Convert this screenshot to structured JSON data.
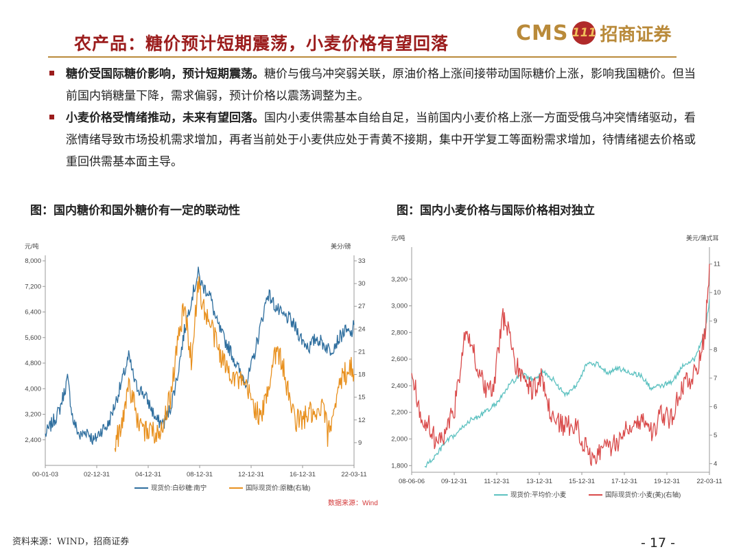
{
  "header": {
    "title": "农产品：糖价预计短期震荡，小麦价格有望回落",
    "logo_text": "CMS",
    "logo_mark": "111",
    "logo_cn": "招商证券"
  },
  "bullets": [
    {
      "lead": "糖价受国际糖价影响，预计短期震荡。",
      "body": "糖价与俄乌冲突弱关联，原油价格上涨间接带动国际糖价上涨，影响我国糖价。但当前国内销糖量下降，需求偏弱，预计价格以震荡调整为主。"
    },
    {
      "lead": "小麦价格受情绪推动，未来有望回落。",
      "body": "国内小麦供需基本自给自足，当前国内小麦价格上涨一方面受俄乌冲突情绪驱动，看涨情绪导致市场投机需求增加，再者当前处于小麦供应处于青黄不接期，集中开学复工等面粉需求增加，待情绪褪去价格或重回供需基本面主导。"
    }
  ],
  "figures": {
    "left_caption": "图：国内糖价和国外糖价有一定的联动性",
    "right_caption": "图：国内小麦价格与国际价格相对独立",
    "left_source": "数据来源：Wind"
  },
  "chart_data": [
    {
      "type": "line",
      "ylabel": "元/吨",
      "y2label": "美分/磅",
      "ylim": [
        1600,
        8000
      ],
      "y2lim": [
        6,
        33
      ],
      "yticks": [
        "8,000",
        "7,200",
        "6,400",
        "5,600",
        "4,800",
        "4,000",
        "3,200",
        "2,400"
      ],
      "y2ticks": [
        "33",
        "30",
        "27",
        "24",
        "21",
        "18",
        "15",
        "12",
        "9"
      ],
      "xticks": [
        "00-01-03",
        "02-12-31",
        "04-12-31",
        "08-12-31",
        "12-12-31",
        "16-12-31",
        "22-03-11"
      ],
      "x_range": [
        2000.0,
        2022.2
      ],
      "series": [
        {
          "name": "现货价:白砂糖:南宁",
          "color": "#2e6e9e",
          "axis": "left",
          "x": [
            2000.0,
            2001.0,
            2001.6,
            2002.0,
            2002.5,
            2003.0,
            2003.5,
            2004.0,
            2004.5,
            2005.0,
            2005.5,
            2006.0,
            2006.5,
            2007.0,
            2007.5,
            2008.0,
            2008.5,
            2009.0,
            2009.5,
            2010.0,
            2010.5,
            2011.0,
            2011.3,
            2011.8,
            2012.3,
            2012.8,
            2013.3,
            2014.0,
            2014.5,
            2015.0,
            2015.5,
            2016.0,
            2016.5,
            2017.0,
            2017.5,
            2018.0,
            2018.5,
            2019.0,
            2019.5,
            2020.0,
            2020.5,
            2021.0,
            2021.5,
            2022.0,
            2022.2
          ],
          "y": [
            2550,
            3300,
            4300,
            3000,
            2500,
            2700,
            2350,
            2700,
            2850,
            3500,
            4200,
            5000,
            4100,
            3900,
            3500,
            3000,
            2900,
            3400,
            4400,
            5800,
            6800,
            7600,
            7200,
            7000,
            6100,
            5600,
            5200,
            4500,
            4200,
            5000,
            6000,
            7000,
            6600,
            6300,
            6200,
            5900,
            5500,
            5300,
            5600,
            5400,
            5200,
            5500,
            5800,
            5700,
            6000
          ]
        },
        {
          "name": "国际现货价:原糖(右轴)",
          "color": "#e8901e",
          "axis": "right",
          "x": [
            2005.0,
            2005.5,
            2006.0,
            2006.5,
            2007.0,
            2007.5,
            2008.0,
            2008.5,
            2009.0,
            2009.5,
            2010.0,
            2010.5,
            2011.0,
            2011.5,
            2012.0,
            2012.5,
            2013.0,
            2013.5,
            2014.0,
            2014.5,
            2015.0,
            2015.5,
            2016.0,
            2016.5,
            2017.0,
            2017.5,
            2018.0,
            2018.5,
            2019.0,
            2019.5,
            2020.0,
            2020.3,
            2020.6,
            2021.0,
            2021.5,
            2022.0,
            2022.2
          ],
          "y": [
            9,
            11,
            17,
            13,
            10,
            11,
            10,
            12,
            15,
            22,
            27,
            20,
            30,
            26,
            24,
            21,
            19,
            18,
            17,
            16,
            14,
            12,
            16,
            21,
            20,
            15,
            12,
            12,
            13,
            12,
            14,
            10,
            12,
            16,
            18,
            19,
            18
          ]
        }
      ],
      "legend": "bottom"
    },
    {
      "type": "line",
      "ylabel": "元/吨",
      "y2label": "美元/蒲式耳",
      "ylim": [
        1750,
        3400
      ],
      "y2lim": [
        3.7,
        11.4
      ],
      "yticks": [
        "3,200",
        "3,000",
        "2,800",
        "2,600",
        "2,400",
        "2,200",
        "2,000",
        "1,800"
      ],
      "y2ticks": [
        "11",
        "10",
        "9",
        "8",
        "7",
        "6",
        "5",
        "4"
      ],
      "xticks": [
        "08-06-06",
        "09-12-31",
        "11-12-31",
        "13-12-31",
        "15-12-31",
        "17-12-31",
        "19-12-31",
        "22-03-11"
      ],
      "x_range": [
        2008.4,
        2022.2
      ],
      "series": [
        {
          "name": "现货价:平均价:小麦",
          "color": "#5cc1c0",
          "axis": "left",
          "x": [
            2009.0,
            2009.5,
            2010.0,
            2010.5,
            2011.0,
            2011.5,
            2012.0,
            2012.5,
            2013.0,
            2013.5,
            2014.0,
            2014.5,
            2015.0,
            2015.5,
            2016.0,
            2016.5,
            2017.0,
            2017.5,
            2018.0,
            2018.5,
            2019.0,
            2019.5,
            2020.0,
            2020.5,
            2021.0,
            2021.5,
            2022.0,
            2022.2
          ],
          "y": [
            1790,
            1870,
            1980,
            2040,
            2130,
            2170,
            2220,
            2300,
            2420,
            2480,
            2450,
            2500,
            2440,
            2330,
            2400,
            2560,
            2560,
            2500,
            2530,
            2500,
            2480,
            2380,
            2400,
            2430,
            2560,
            2600,
            2800,
            3050
          ]
        },
        {
          "name": "国际现货价:小麦(美)(右轴)",
          "color": "#d94a4a",
          "axis": "right",
          "x": [
            2008.4,
            2008.8,
            2009.2,
            2009.6,
            2010.0,
            2010.4,
            2010.8,
            2011.0,
            2011.4,
            2011.8,
            2012.2,
            2012.6,
            2012.9,
            2013.2,
            2013.6,
            2014.0,
            2014.4,
            2014.8,
            2015.2,
            2015.6,
            2016.0,
            2016.4,
            2016.8,
            2017.2,
            2017.6,
            2018.0,
            2018.4,
            2018.8,
            2019.2,
            2019.6,
            2020.0,
            2020.4,
            2020.8,
            2021.2,
            2021.6,
            2022.0,
            2022.2
          ],
          "y": [
            7.4,
            5.6,
            5.4,
            4.6,
            5.2,
            6.0,
            8.2,
            8.5,
            7.6,
            6.6,
            6.6,
            9.1,
            8.8,
            7.5,
            6.9,
            6.6,
            7.0,
            5.8,
            5.4,
            5.3,
            5.4,
            4.7,
            4.2,
            4.5,
            4.6,
            4.8,
            5.4,
            5.5,
            5.5,
            5.1,
            5.8,
            5.5,
            6.5,
            6.9,
            7.2,
            8.6,
            11.0
          ]
        }
      ],
      "legend": "bottom"
    }
  ],
  "footer": {
    "source": "资料来源：WIND，招商证券",
    "page": "- 17 -"
  }
}
